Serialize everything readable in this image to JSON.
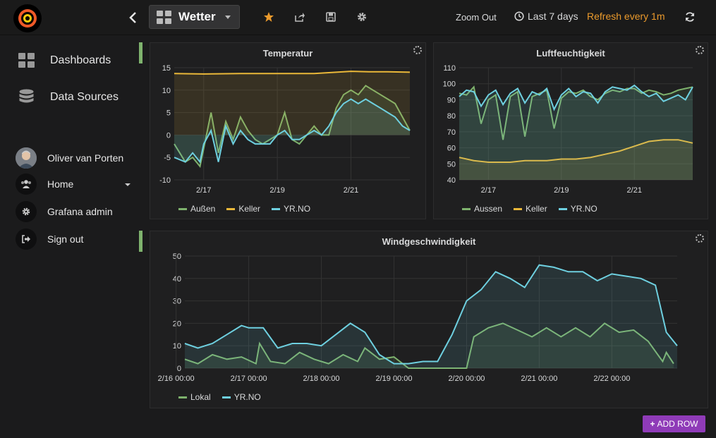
{
  "topbar": {
    "dashboard_title": "Wetter",
    "zoom_out": "Zoom Out",
    "time_range": "Last 7 days",
    "refresh": "Refresh every 1m"
  },
  "sidemenu": {
    "items": [
      {
        "label": "Dashboards",
        "icon": "dashboards-icon"
      },
      {
        "label": "Data Sources",
        "icon": "database-icon"
      }
    ],
    "user": {
      "name": "Oliver van Porten"
    },
    "user_items": [
      {
        "label": "Home",
        "icon": "users-icon"
      },
      {
        "label": "Grafana admin",
        "icon": "gear-icon"
      },
      {
        "label": "Sign out",
        "icon": "sign-out-icon"
      }
    ]
  },
  "colors": {
    "green": "#7eb26d",
    "yellow": "#eab839",
    "blue": "#6ed0e0",
    "orange": "#eb9a2c",
    "purple": "#8f3bb8"
  },
  "add_row": "ADD ROW",
  "chart_data": [
    {
      "type": "area",
      "title": "Temperatur",
      "x_ticks": [
        "2/17",
        "2/19",
        "2/21"
      ],
      "x_tick_pos": [
        1,
        3,
        5
      ],
      "xlim": [
        0.2,
        6.6
      ],
      "ylim": [
        -10,
        15
      ],
      "y_ticks": [
        15,
        10,
        5,
        0,
        -5,
        -10
      ],
      "legend": [
        "Außen",
        "Keller",
        "YR.NO"
      ],
      "series": [
        {
          "name": "Außen",
          "color": "#7eb26d",
          "x": [
            0.2,
            0.5,
            0.7,
            0.9,
            1.0,
            1.2,
            1.4,
            1.6,
            1.8,
            2.0,
            2.2,
            2.4,
            2.6,
            2.8,
            3.0,
            3.2,
            3.4,
            3.6,
            3.8,
            4.0,
            4.2,
            4.4,
            4.6,
            4.8,
            5.0,
            5.2,
            5.4,
            5.6,
            5.8,
            6.0,
            6.2,
            6.4,
            6.6
          ],
          "values": [
            -2,
            -6,
            -5,
            -7,
            -3,
            5,
            -4,
            3,
            -1,
            4,
            1,
            -1,
            -2,
            -1,
            0,
            5,
            -1,
            -2,
            0,
            2,
            0,
            0,
            6,
            9,
            10,
            9,
            11,
            10,
            9,
            8,
            7,
            4,
            1
          ]
        },
        {
          "name": "Keller",
          "color": "#eab839",
          "x": [
            0.2,
            1.0,
            2.0,
            3.0,
            4.0,
            4.6,
            5.0,
            5.5,
            6.0,
            6.6
          ],
          "values": [
            13.7,
            13.6,
            13.7,
            13.7,
            13.7,
            14.0,
            14.2,
            14.1,
            14.1,
            14.0
          ]
        },
        {
          "name": "YR.NO",
          "color": "#6ed0e0",
          "x": [
            0.2,
            0.5,
            0.7,
            0.9,
            1.0,
            1.2,
            1.4,
            1.6,
            1.8,
            2.0,
            2.2,
            2.4,
            2.6,
            2.8,
            3.0,
            3.2,
            3.4,
            3.6,
            3.8,
            4.0,
            4.2,
            4.4,
            4.6,
            4.8,
            5.0,
            5.2,
            5.4,
            5.6,
            5.8,
            6.0,
            6.2,
            6.4,
            6.6
          ],
          "values": [
            -5,
            -6,
            -4,
            -6,
            -2,
            1,
            -6,
            2,
            -2,
            1,
            -1,
            -2,
            -2,
            -2,
            0,
            1,
            -1,
            -1,
            0,
            1,
            0,
            2,
            5,
            7,
            8,
            7,
            8,
            7,
            6,
            5,
            4,
            2,
            1
          ]
        }
      ]
    },
    {
      "type": "area",
      "title": "Luftfeuchtigkeit",
      "x_ticks": [
        "2/17",
        "2/19",
        "2/21"
      ],
      "x_tick_pos": [
        1,
        3,
        5
      ],
      "xlim": [
        0.2,
        6.6
      ],
      "ylim": [
        40,
        110
      ],
      "y_ticks": [
        110,
        100,
        90,
        80,
        70,
        60,
        50,
        40
      ],
      "legend": [
        "Aussen",
        "Keller",
        "YR.NO"
      ],
      "series": [
        {
          "name": "Aussen",
          "color": "#7eb26d",
          "x": [
            0.2,
            0.4,
            0.6,
            0.8,
            1.0,
            1.2,
            1.4,
            1.6,
            1.8,
            2.0,
            2.2,
            2.4,
            2.6,
            2.8,
            3.0,
            3.2,
            3.4,
            3.6,
            3.8,
            4.0,
            4.2,
            4.4,
            4.6,
            4.8,
            5.0,
            5.2,
            5.4,
            5.6,
            5.8,
            6.0,
            6.2,
            6.4,
            6.6
          ],
          "values": [
            94,
            93,
            98,
            75,
            90,
            93,
            65,
            92,
            95,
            67,
            92,
            94,
            96,
            72,
            91,
            95,
            94,
            96,
            92,
            90,
            94,
            96,
            95,
            97,
            97,
            94,
            96,
            95,
            93,
            94,
            96,
            97,
            98
          ]
        },
        {
          "name": "Keller",
          "color": "#eab839",
          "x": [
            0.2,
            0.6,
            1.0,
            1.6,
            2.0,
            2.6,
            3.0,
            3.4,
            3.8,
            4.2,
            4.6,
            5.0,
            5.4,
            5.8,
            6.2,
            6.6
          ],
          "values": [
            54,
            52,
            51,
            51,
            52,
            52,
            53,
            53,
            54,
            56,
            58,
            61,
            64,
            65,
            65,
            63
          ]
        },
        {
          "name": "YR.NO",
          "color": "#6ed0e0",
          "x": [
            0.2,
            0.4,
            0.6,
            0.8,
            1.0,
            1.2,
            1.4,
            1.6,
            1.8,
            2.0,
            2.2,
            2.4,
            2.6,
            2.8,
            3.0,
            3.2,
            3.4,
            3.6,
            3.8,
            4.0,
            4.2,
            4.4,
            4.6,
            4.8,
            5.0,
            5.2,
            5.4,
            5.6,
            5.8,
            6.0,
            6.2,
            6.4,
            6.6
          ],
          "values": [
            92,
            96,
            95,
            86,
            93,
            96,
            87,
            94,
            97,
            88,
            95,
            93,
            97,
            84,
            93,
            97,
            92,
            95,
            94,
            88,
            95,
            98,
            97,
            96,
            99,
            95,
            92,
            94,
            89,
            91,
            93,
            90,
            98
          ]
        }
      ]
    },
    {
      "type": "area",
      "title": "Windgeschwindigkeit",
      "x_ticks": [
        "2/16 00:00",
        "2/17 00:00",
        "2/18 00:00",
        "2/19 00:00",
        "2/20 00:00",
        "2/21 00:00",
        "2/22 00:00"
      ],
      "x_tick_pos": [
        0,
        1,
        2,
        3,
        4,
        5,
        6
      ],
      "xlim": [
        0.12,
        6.9
      ],
      "ylim": [
        0,
        50
      ],
      "y_ticks": [
        50,
        40,
        30,
        20,
        10,
        0
      ],
      "legend": [
        "Lokal",
        "YR.NO"
      ],
      "series": [
        {
          "name": "Lokal",
          "color": "#7eb26d",
          "x": [
            0.12,
            0.3,
            0.5,
            0.7,
            0.9,
            1.1,
            1.15,
            1.3,
            1.5,
            1.7,
            1.9,
            2.1,
            2.3,
            2.5,
            2.6,
            2.8,
            3.0,
            3.2,
            3.4,
            3.6,
            3.8,
            4.0,
            4.1,
            4.3,
            4.5,
            4.7,
            4.9,
            5.1,
            5.3,
            5.5,
            5.7,
            5.9,
            6.1,
            6.3,
            6.5,
            6.7,
            6.75,
            6.85
          ],
          "values": [
            4,
            2,
            6,
            4,
            5,
            2,
            11,
            3,
            2,
            7,
            4,
            2,
            6,
            3,
            9,
            4,
            5,
            0,
            0,
            0,
            0,
            0,
            14,
            18,
            20,
            17,
            14,
            18,
            14,
            18,
            14,
            20,
            16,
            17,
            12,
            3,
            7,
            2
          ]
        },
        {
          "name": "YR.NO",
          "color": "#6ed0e0",
          "x": [
            0.12,
            0.3,
            0.5,
            0.7,
            0.9,
            1.0,
            1.2,
            1.4,
            1.6,
            1.8,
            2.0,
            2.2,
            2.4,
            2.6,
            2.8,
            3.0,
            3.2,
            3.4,
            3.6,
            3.8,
            4.0,
            4.2,
            4.4,
            4.6,
            4.8,
            5.0,
            5.2,
            5.4,
            5.6,
            5.8,
            6.0,
            6.2,
            6.4,
            6.6,
            6.75,
            6.9
          ],
          "values": [
            11,
            9,
            11,
            15,
            19,
            18,
            18,
            9,
            11,
            11,
            10,
            15,
            20,
            16,
            6,
            2,
            2,
            3,
            3,
            15,
            30,
            35,
            43,
            40,
            36,
            46,
            45,
            43,
            43,
            39,
            42,
            41,
            40,
            37,
            16,
            10
          ]
        }
      ]
    }
  ]
}
